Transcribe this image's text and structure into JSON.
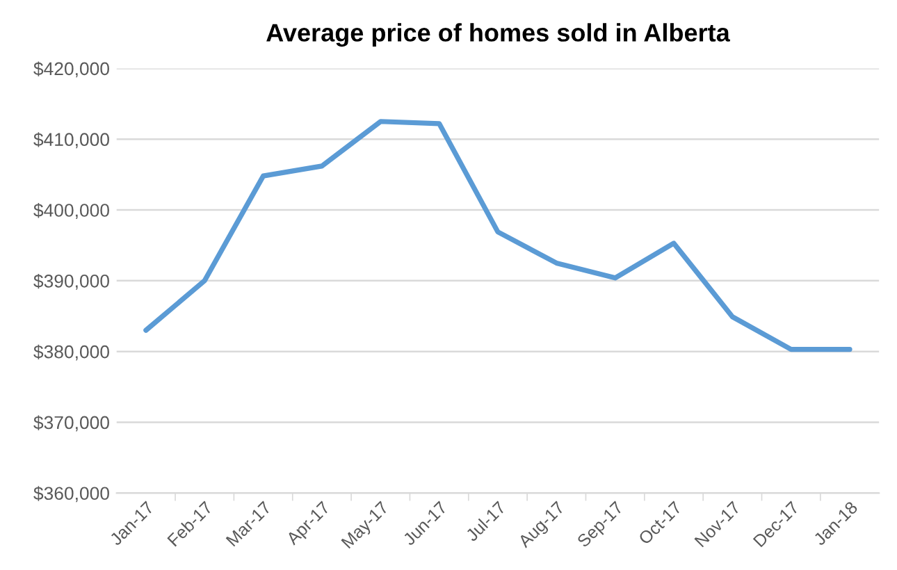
{
  "chart_data": {
    "type": "line",
    "title": "Average price of homes sold in Alberta",
    "categories": [
      "Jan-17",
      "Feb-17",
      "Mar-17",
      "Apr-17",
      "May-17",
      "Jun-17",
      "Jul-17",
      "Aug-17",
      "Sep-17",
      "Oct-17",
      "Nov-17",
      "Dec-17",
      "Jan-18"
    ],
    "series": [
      {
        "color": "#5b9bd5",
        "values": [
          383000,
          390000,
          404800,
          406200,
          412500,
          412200,
          396900,
          392500,
          390400,
          395300,
          384900,
          380300,
          380300
        ]
      }
    ],
    "ylim": [
      360000,
      420000
    ],
    "yticks": [
      {
        "value": 360000,
        "label": "$360,000"
      },
      {
        "value": 370000,
        "label": "$370,000"
      },
      {
        "value": 380000,
        "label": "$380,000"
      },
      {
        "value": 390000,
        "label": "$390,000"
      },
      {
        "value": 400000,
        "label": "$400,000"
      },
      {
        "value": 410000,
        "label": "$410,000"
      },
      {
        "value": 420000,
        "label": "$420,000"
      }
    ],
    "grid": "y",
    "legend": false,
    "marker": "none",
    "line_style": "solid"
  }
}
